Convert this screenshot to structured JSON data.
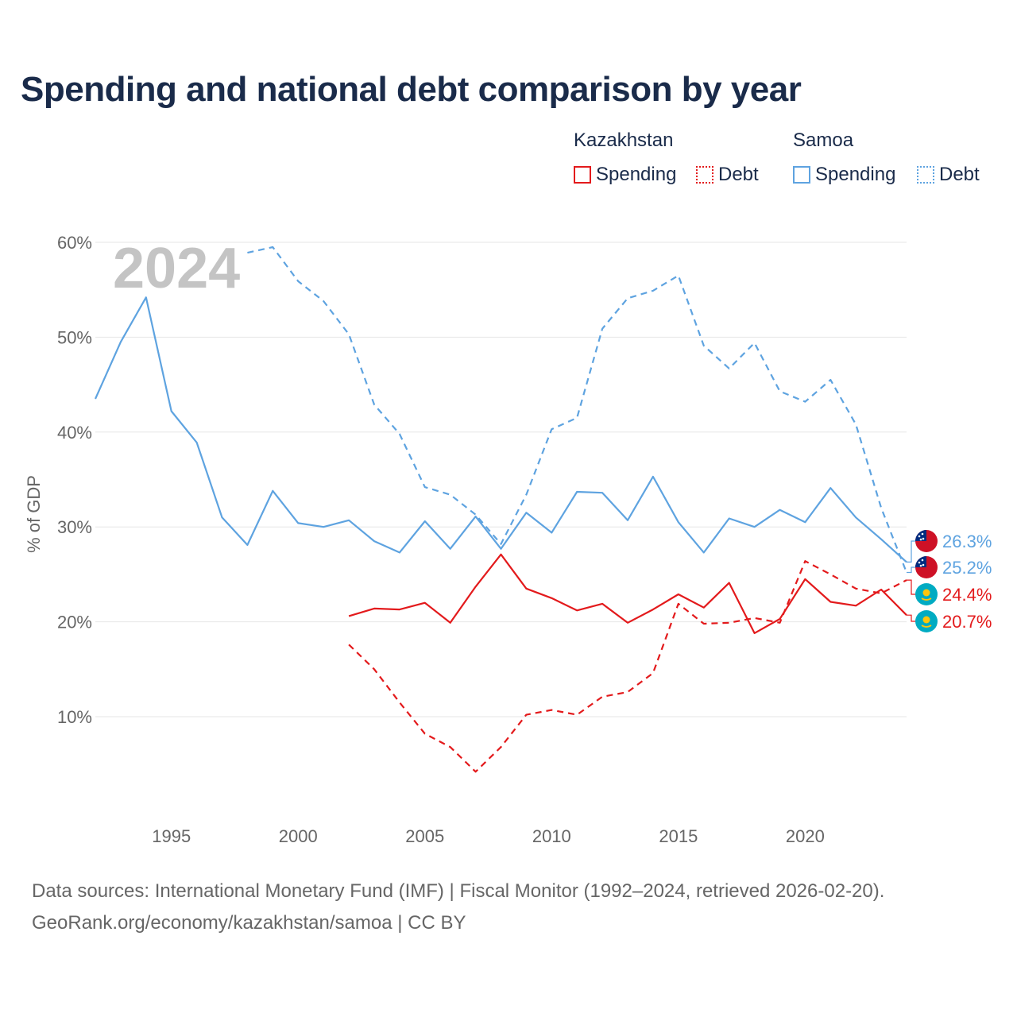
{
  "title": "Spending and national debt comparison by year",
  "legend": {
    "groups": [
      {
        "country": "Kazakhstan",
        "items": [
          {
            "label": "Spending",
            "color": "#e31a1c",
            "style": "solid"
          },
          {
            "label": "Debt",
            "color": "#e31a1c",
            "style": "dotted"
          }
        ]
      },
      {
        "country": "Samoa",
        "items": [
          {
            "label": "Spending",
            "color": "#5ea3e0",
            "style": "solid"
          },
          {
            "label": "Debt",
            "color": "#5ea3e0",
            "style": "dotted"
          }
        ]
      }
    ]
  },
  "year_label": "2024",
  "colors": {
    "kazakhstan": "#e31a1c",
    "samoa": "#5ea3e0",
    "grid": "#e6e6e6",
    "text": "#666666"
  },
  "chart_data": {
    "type": "line",
    "title": "Spending and national debt comparison by year",
    "xlabel": "",
    "ylabel": "% of GDP",
    "xlim": [
      1992,
      2024
    ],
    "ylim": [
      0,
      60
    ],
    "xticks": [
      1995,
      2000,
      2005,
      2010,
      2015,
      2020
    ],
    "yticks": [
      10,
      20,
      30,
      40,
      50,
      60
    ],
    "ytick_labels": [
      "10%",
      "20%",
      "30%",
      "40%",
      "50%",
      "60%"
    ],
    "series": [
      {
        "name": "Samoa Spending",
        "country": "Samoa",
        "measure": "Spending",
        "color": "#5ea3e0",
        "dashed": false,
        "x": [
          1992,
          1993,
          1994,
          1995,
          1996,
          1997,
          1998,
          1999,
          2000,
          2001,
          2002,
          2003,
          2004,
          2005,
          2006,
          2007,
          2008,
          2009,
          2010,
          2011,
          2012,
          2013,
          2014,
          2015,
          2016,
          2017,
          2018,
          2019,
          2020,
          2021,
          2022,
          2023,
          2024
        ],
        "values": [
          43.5,
          49.5,
          54.2,
          42.2,
          38.9,
          31.0,
          28.1,
          33.8,
          30.4,
          30.0,
          30.7,
          28.5,
          27.3,
          30.6,
          27.7,
          31.1,
          27.7,
          31.5,
          29.4,
          33.7,
          33.6,
          30.7,
          35.3,
          30.5,
          27.3,
          30.9,
          30.0,
          31.8,
          30.5,
          34.1,
          31.0,
          28.7,
          26.3
        ]
      },
      {
        "name": "Samoa Debt",
        "country": "Samoa",
        "measure": "Debt",
        "color": "#5ea3e0",
        "dashed": true,
        "x": [
          1998,
          1999,
          2000,
          2001,
          2002,
          2003,
          2004,
          2005,
          2006,
          2007,
          2008,
          2009,
          2010,
          2011,
          2012,
          2013,
          2014,
          2015,
          2016,
          2017,
          2018,
          2019,
          2020,
          2021,
          2022,
          2023,
          2024
        ],
        "values": [
          58.9,
          59.5,
          55.9,
          53.8,
          50.3,
          42.9,
          39.8,
          34.2,
          33.4,
          31.3,
          28.2,
          33.4,
          40.3,
          41.5,
          50.9,
          54.1,
          54.9,
          56.5,
          49.1,
          46.7,
          49.4,
          44.3,
          43.2,
          45.5,
          40.8,
          32.0,
          25.2
        ]
      },
      {
        "name": "Kazakhstan Spending",
        "country": "Kazakhstan",
        "measure": "Spending",
        "color": "#e31a1c",
        "dashed": false,
        "x": [
          2002,
          2003,
          2004,
          2005,
          2006,
          2007,
          2008,
          2009,
          2010,
          2011,
          2012,
          2013,
          2014,
          2015,
          2016,
          2017,
          2018,
          2019,
          2020,
          2021,
          2022,
          2023,
          2024
        ],
        "values": [
          20.6,
          21.4,
          21.3,
          22.0,
          19.9,
          23.7,
          27.1,
          23.5,
          22.5,
          21.2,
          21.9,
          19.9,
          21.3,
          22.9,
          21.5,
          24.1,
          18.8,
          20.3,
          24.5,
          22.1,
          21.7,
          23.4,
          20.7
        ]
      },
      {
        "name": "Kazakhstan Debt",
        "country": "Kazakhstan",
        "measure": "Debt",
        "color": "#e31a1c",
        "dashed": true,
        "x": [
          2002,
          2003,
          2004,
          2005,
          2006,
          2007,
          2008,
          2009,
          2010,
          2011,
          2012,
          2013,
          2014,
          2015,
          2016,
          2017,
          2018,
          2019,
          2020,
          2021,
          2022,
          2023,
          2024
        ],
        "values": [
          17.6,
          15.0,
          11.5,
          8.2,
          6.8,
          4.2,
          6.8,
          10.2,
          10.7,
          10.2,
          12.1,
          12.6,
          14.6,
          21.9,
          19.8,
          19.9,
          20.4,
          19.9,
          26.4,
          25.0,
          23.5,
          23.0,
          24.4
        ]
      }
    ],
    "end_labels": [
      {
        "text": "26.3%",
        "value": 26.3,
        "country": "Samoa",
        "color": "#5ea3e0"
      },
      {
        "text": "25.2%",
        "value": 25.2,
        "country": "Samoa",
        "color": "#5ea3e0"
      },
      {
        "text": "24.4%",
        "value": 24.4,
        "country": "Kazakhstan",
        "color": "#e31a1c"
      },
      {
        "text": "20.7%",
        "value": 20.7,
        "country": "Kazakhstan",
        "color": "#e31a1c"
      }
    ]
  },
  "source": {
    "line1": "Data sources: International Monetary Fund (IMF) | Fiscal Monitor (1992–2024, retrieved 2026-02-20).",
    "line2": "GeoRank.org/economy/kazakhstan/samoa | CC BY"
  }
}
